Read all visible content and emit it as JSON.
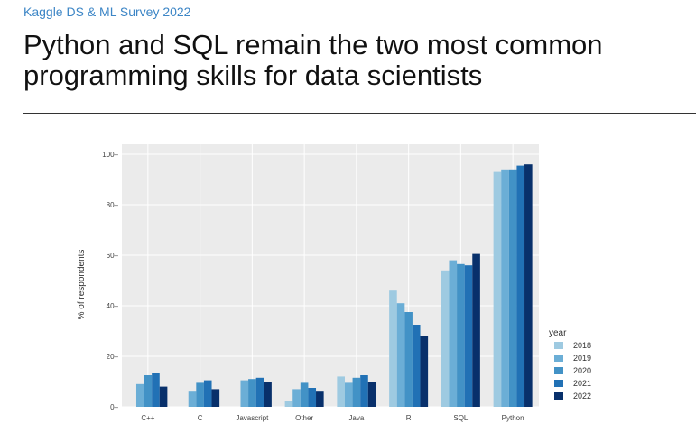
{
  "header": {
    "source": "Kaggle DS & ML Survey 2022",
    "headline": "Python and SQL remain the two most common programming skills for data scientists"
  },
  "chart_data": {
    "type": "bar",
    "categories": [
      "C++",
      "C",
      "Javascript",
      "Other",
      "Java",
      "R",
      "SQL",
      "Python"
    ],
    "series": [
      {
        "name": "2018",
        "color": "#9ecae1",
        "values": [
          0,
          0,
          0,
          2.5,
          12,
          46,
          54,
          93
        ]
      },
      {
        "name": "2019",
        "color": "#6baed6",
        "values": [
          9,
          6,
          10.5,
          7,
          9.5,
          41,
          58,
          94
        ]
      },
      {
        "name": "2020",
        "color": "#4292c6",
        "values": [
          12.5,
          9.5,
          11,
          9.5,
          11.5,
          37.5,
          56.5,
          94
        ]
      },
      {
        "name": "2021",
        "color": "#2171b5",
        "values": [
          13.5,
          10.5,
          11.5,
          7.5,
          12.5,
          32.5,
          56,
          95.5
        ]
      },
      {
        "name": "2022",
        "color": "#08306b",
        "values": [
          8,
          7,
          10,
          6,
          10,
          28,
          60.5,
          96
        ]
      }
    ],
    "ylabel": "% of respondents",
    "xlabel": "",
    "ylim": [
      0,
      100
    ],
    "yticks": [
      0,
      20,
      40,
      60,
      80,
      100
    ],
    "legend_title": "year",
    "legend_position": "right",
    "grid": true,
    "plot_background": "#ebebeb"
  }
}
